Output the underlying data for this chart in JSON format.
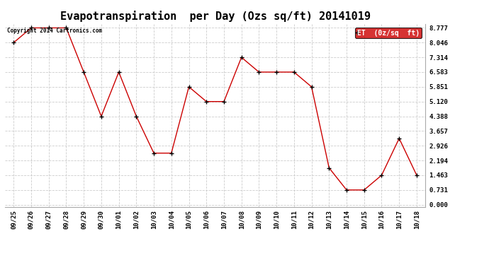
{
  "title": "Evapotranspiration  per Day (Ozs sq/ft) 20141019",
  "x_labels": [
    "09/25",
    "09/26",
    "09/27",
    "09/28",
    "09/29",
    "09/30",
    "10/01",
    "10/02",
    "10/03",
    "10/04",
    "10/05",
    "10/06",
    "10/07",
    "10/08",
    "10/09",
    "10/10",
    "10/11",
    "10/12",
    "10/13",
    "10/14",
    "10/15",
    "10/16",
    "10/17",
    "10/18"
  ],
  "y_values": [
    8.046,
    8.777,
    8.777,
    8.777,
    6.583,
    4.388,
    6.583,
    4.388,
    2.56,
    2.56,
    5.851,
    5.12,
    5.12,
    7.314,
    6.583,
    6.583,
    6.583,
    5.851,
    1.828,
    0.731,
    0.731,
    1.463,
    3.29,
    1.463
  ],
  "line_color": "#cc0000",
  "marker": "+",
  "legend_label": "ET  (0z/sq  ft)",
  "legend_bg": "#cc0000",
  "legend_text_color": "#ffffff",
  "copyright_text": "Copyright 2014 Cartronics.com",
  "y_ticks": [
    0.0,
    0.731,
    1.463,
    2.194,
    2.926,
    3.657,
    4.388,
    5.12,
    5.851,
    6.583,
    7.314,
    8.046,
    8.777
  ],
  "y_min": 0.0,
  "y_max": 8.777,
  "grid_color": "#cccccc",
  "background_color": "#ffffff",
  "title_fontsize": 11,
  "tick_fontsize": 6.5
}
